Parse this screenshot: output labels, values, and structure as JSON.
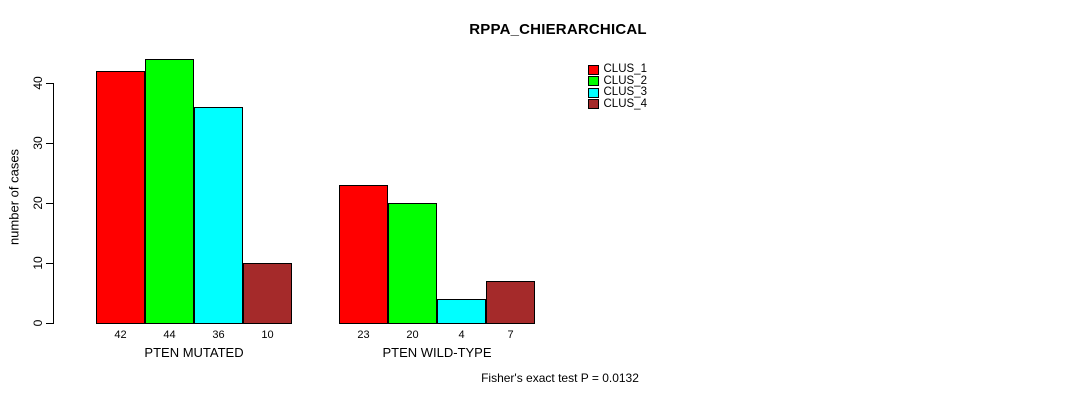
{
  "chart_data": {
    "type": "bar",
    "title": "RPPA_CHIERARCHICAL",
    "xlabel": "",
    "ylabel": "number of cases",
    "categories": [
      "PTEN MUTATED",
      "PTEN WILD-TYPE"
    ],
    "series": [
      {
        "name": "CLUS_1",
        "color": "#ff0000",
        "values": [
          42,
          23
        ]
      },
      {
        "name": "CLUS_2",
        "color": "#00ff00",
        "values": [
          44,
          20
        ]
      },
      {
        "name": "CLUS_3",
        "color": "#00ffff",
        "values": [
          36,
          4
        ]
      },
      {
        "name": "CLUS_4",
        "color": "#a52a2a",
        "values": [
          10,
          7
        ]
      }
    ],
    "bar_value_labels": [
      [
        "42",
        "44",
        "36",
        "10"
      ],
      [
        "23",
        "20",
        "4",
        "7"
      ]
    ],
    "ylim": [
      0,
      44
    ],
    "yticks": [
      0,
      10,
      20,
      30,
      40
    ],
    "grid": false,
    "legend_position": "top-right",
    "annotation": "Fisher's exact test P = 0.0132"
  },
  "legend": {
    "items": [
      {
        "label": "CLUS_1",
        "color": "#ff0000"
      },
      {
        "label": "CLUS_2",
        "color": "#00ff00"
      },
      {
        "label": "CLUS_3",
        "color": "#00ffff"
      },
      {
        "label": "CLUS_4",
        "color": "#a52a2a"
      }
    ]
  }
}
